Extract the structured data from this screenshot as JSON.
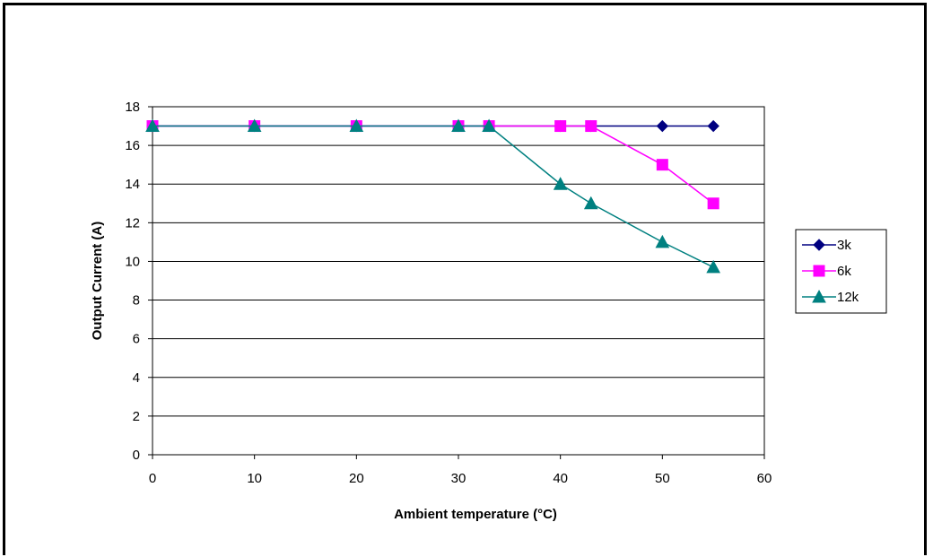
{
  "chart_data": {
    "type": "line",
    "title": "",
    "xlabel": "Ambient temperature (°C)",
    "ylabel": "Output Current (A)",
    "xlim": [
      0,
      60
    ],
    "ylim": [
      0,
      18
    ],
    "xticks": [
      0,
      10,
      20,
      30,
      40,
      50,
      60
    ],
    "yticks": [
      0,
      2,
      4,
      6,
      8,
      10,
      12,
      14,
      16,
      18
    ],
    "grid": "horizontal",
    "legend": "right",
    "series": [
      {
        "name": "3k",
        "color": "#000080",
        "marker": "diamond",
        "x": [
          0,
          10,
          20,
          30,
          33,
          40,
          43,
          50,
          55
        ],
        "y": [
          17,
          17,
          17,
          17,
          17,
          17,
          17,
          17,
          17
        ]
      },
      {
        "name": "6k",
        "color": "#ff00ff",
        "marker": "square",
        "x": [
          0,
          10,
          20,
          30,
          33,
          40,
          43,
          50,
          55
        ],
        "y": [
          17,
          17,
          17,
          17,
          17,
          17,
          17,
          15,
          13
        ]
      },
      {
        "name": "12k",
        "color": "#008080",
        "marker": "triangle",
        "x": [
          0,
          10,
          20,
          30,
          33,
          40,
          43,
          50,
          55
        ],
        "y": [
          17,
          17,
          17,
          17,
          17,
          14,
          13,
          11,
          9.7
        ]
      }
    ]
  }
}
